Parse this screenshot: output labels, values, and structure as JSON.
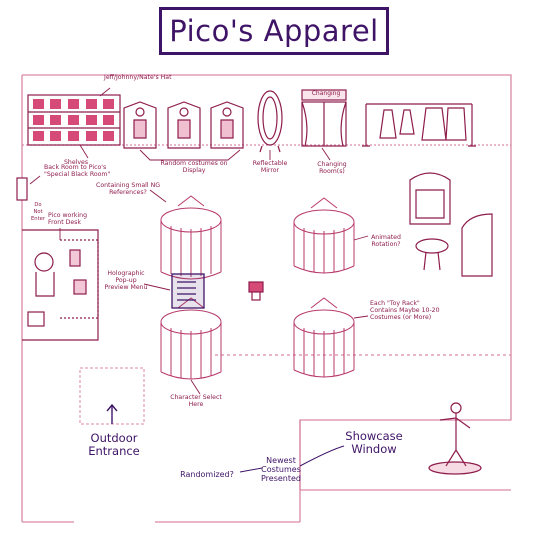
{
  "title": "Pico's Apparel",
  "colors": {
    "line": "#b83a6a",
    "ink": "#8e1d4c",
    "accent": "#3f1467",
    "panel": "#d64a78",
    "floor": "#e8a7c0"
  },
  "labels": {
    "hat": "Jeff/Johnny/Nate's Hat",
    "shelves": "Shelves",
    "random_costumes": "Random costumes on Display",
    "mirror": "Reflectable Mirror",
    "changing_rooms": "Changing Room(s)",
    "changing_sign": "Changing",
    "back_room": "Back Room to Pico's \"Special Black Room\"",
    "containing": "Containing Small NG References?",
    "do_not_enter": "Do Not Enter",
    "front_desk": "Pico working Front Desk",
    "animated": "Animated Rotation?",
    "holographic": "Holographic Pop-up Preview Menu",
    "toy_rack": "Each \"Toy Rack\" Contains Maybe 10-20 Costumes (or More)",
    "character_select": "Character Select Here",
    "outdoor": "Outdoor Entrance",
    "showcase": "Showcase Window",
    "newest": "Newest Costumes Presented",
    "randomized": "Randomized?"
  }
}
